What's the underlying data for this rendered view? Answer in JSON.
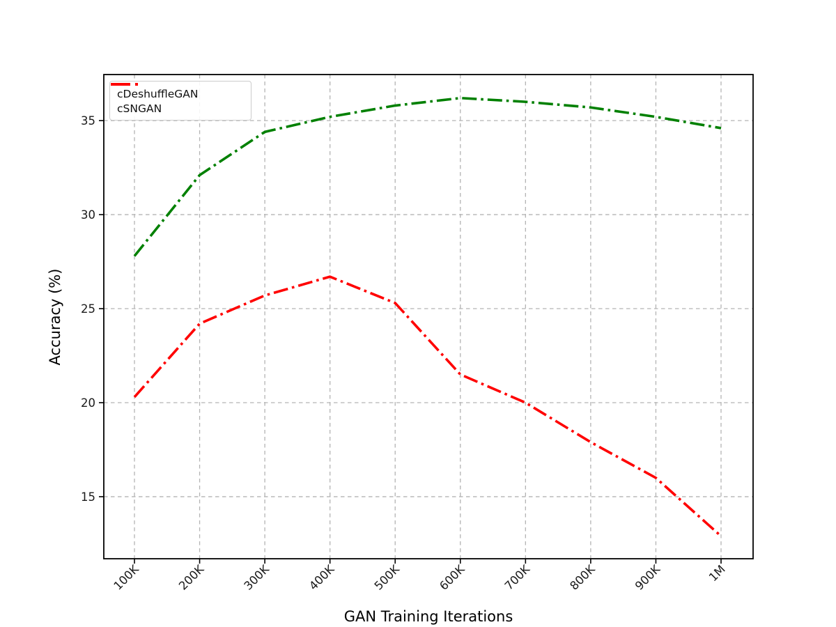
{
  "chart_data": {
    "type": "line",
    "title": "",
    "xlabel": "GAN Training Iterations",
    "ylabel": "Accuracy (%)",
    "categories": [
      "100K",
      "200K",
      "300K",
      "400K",
      "500K",
      "600K",
      "700K",
      "800K",
      "900K",
      "1M"
    ],
    "yticks": [
      15,
      20,
      25,
      30,
      35
    ],
    "ylim": [
      11.7,
      37.45
    ],
    "grid": true,
    "grid_style": "dashed",
    "legend_position": "upper-left",
    "line_style": "dashdot",
    "series": [
      {
        "name": "cDeshuffleGAN",
        "color": "#008000",
        "linestyle": "dashdot",
        "values": [
          27.8,
          32.1,
          34.4,
          35.2,
          35.8,
          36.2,
          36.0,
          35.7,
          35.2,
          34.6
        ]
      },
      {
        "name": "cSNGAN",
        "color": "#ff0000",
        "linestyle": "dashdot",
        "values": [
          20.3,
          24.2,
          25.7,
          26.7,
          25.3,
          21.5,
          20.0,
          17.9,
          16.0,
          12.9
        ]
      }
    ]
  }
}
